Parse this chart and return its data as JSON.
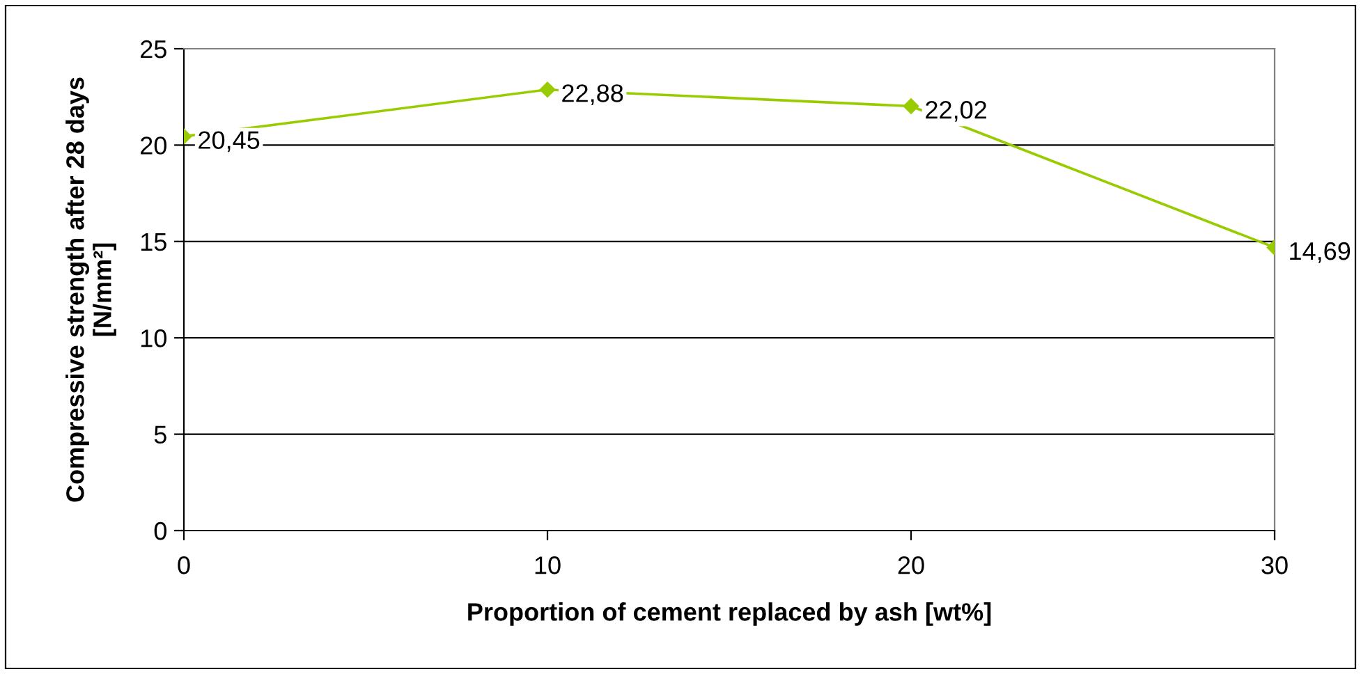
{
  "chart_data": {
    "type": "line",
    "xlabel": "Proportion of cement replaced by ash [wt%]",
    "ylabel": "Compressive strength after 28 days\n[N/mm²]",
    "x": [
      0,
      10,
      20,
      30
    ],
    "series": [
      {
        "color": "#99cc00",
        "values": [
          20.45,
          22.88,
          22.02,
          14.69
        ],
        "value_labels": [
          "20,45",
          "22,88",
          "22,02",
          "14,69"
        ]
      }
    ],
    "xlim": [
      0,
      30
    ],
    "xticks": [
      0,
      10,
      20,
      30
    ],
    "ylim": [
      0,
      25
    ],
    "yticks": [
      0,
      5,
      10,
      15,
      20,
      25
    ],
    "grid": "y",
    "marker": "diamond",
    "line_style": "solid",
    "legend": false
  }
}
